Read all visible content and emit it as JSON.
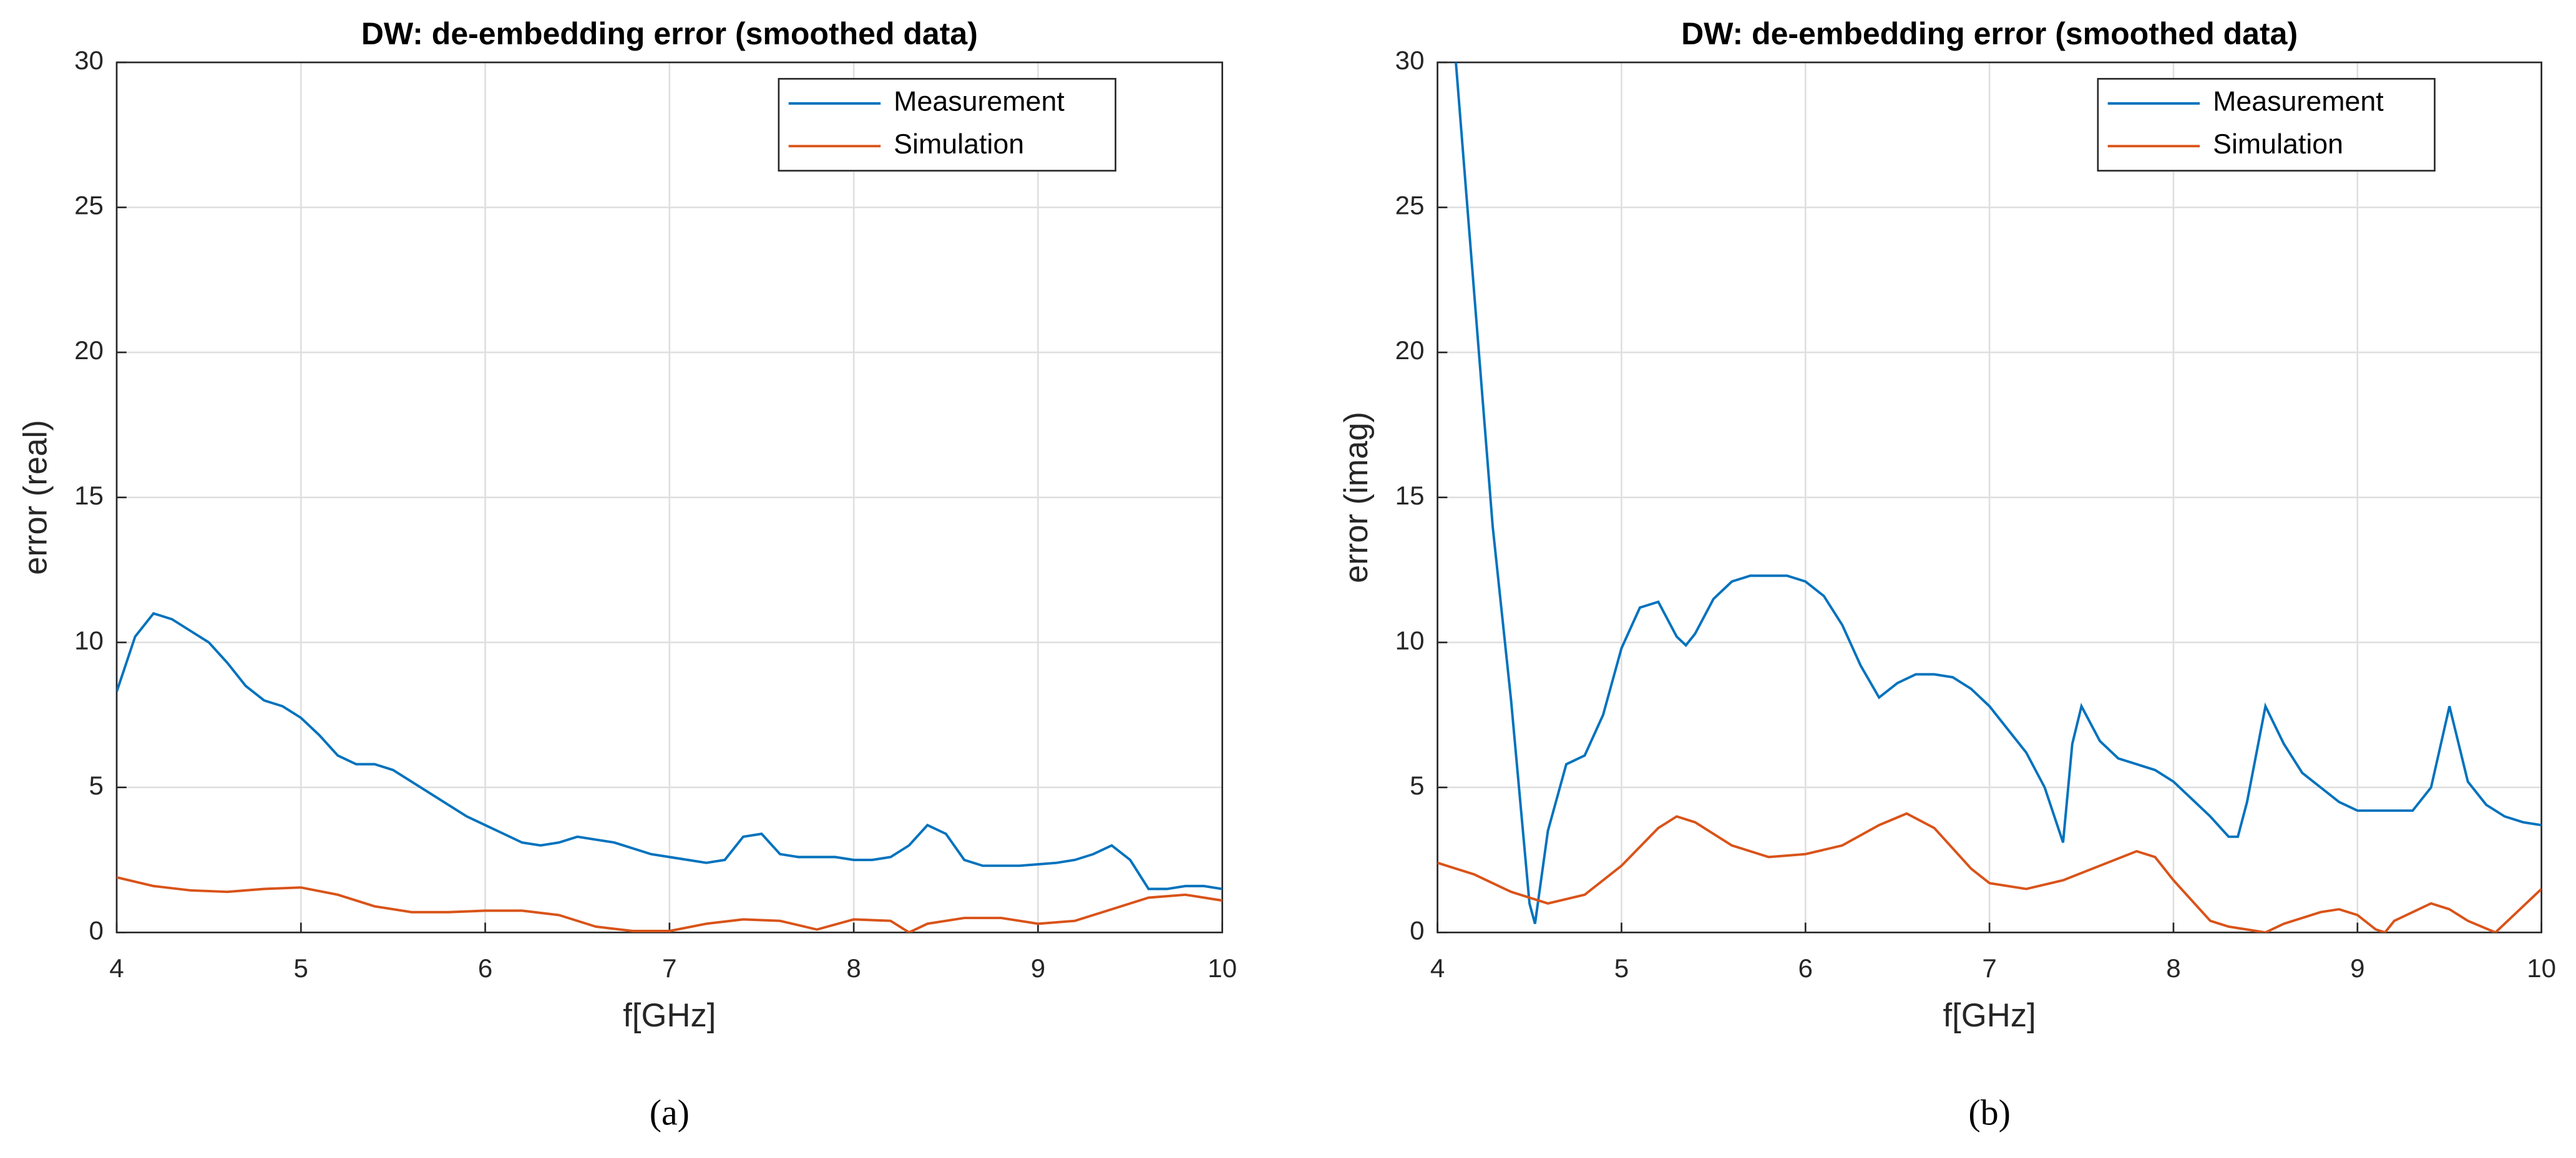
{
  "chart_data": [
    {
      "type": "line",
      "title": "DW: de-embedding error (smoothed data)",
      "xlabel": "f[GHz]",
      "ylabel": "error (real)",
      "caption": "(a)",
      "xlim": [
        4,
        10
      ],
      "xticks": [
        4,
        5,
        6,
        7,
        8,
        9,
        10
      ],
      "ylim": [
        0,
        30
      ],
      "yticks": [
        0,
        5,
        10,
        15,
        20,
        25,
        30
      ],
      "grid": true,
      "legend": "upper right",
      "series": [
        {
          "name": "Measurement",
          "color": "#0072bd",
          "x": [
            4.0,
            4.1,
            4.2,
            4.3,
            4.4,
            4.5,
            4.6,
            4.7,
            4.8,
            4.9,
            5.0,
            5.1,
            5.2,
            5.3,
            5.4,
            5.5,
            5.6,
            5.7,
            5.8,
            5.9,
            6.0,
            6.1,
            6.2,
            6.3,
            6.4,
            6.5,
            6.6,
            6.7,
            6.8,
            6.9,
            7.0,
            7.1,
            7.2,
            7.3,
            7.4,
            7.5,
            7.6,
            7.7,
            7.8,
            7.9,
            8.0,
            8.1,
            8.2,
            8.3,
            8.4,
            8.5,
            8.6,
            8.7,
            8.8,
            8.9,
            9.0,
            9.1,
            9.2,
            9.3,
            9.4,
            9.5,
            9.6,
            9.7,
            9.8,
            9.9,
            10.0
          ],
          "values": [
            8.3,
            10.2,
            11.0,
            10.8,
            10.4,
            10.0,
            9.3,
            8.5,
            8.0,
            7.8,
            7.4,
            6.8,
            6.1,
            5.8,
            5.8,
            5.6,
            5.2,
            4.8,
            4.4,
            4.0,
            3.7,
            3.4,
            3.1,
            3.0,
            3.1,
            3.3,
            3.2,
            3.1,
            2.9,
            2.7,
            2.6,
            2.5,
            2.4,
            2.5,
            3.3,
            3.4,
            2.7,
            2.6,
            2.6,
            2.6,
            2.5,
            2.5,
            2.6,
            3.0,
            3.7,
            3.4,
            2.5,
            2.3,
            2.3,
            2.3,
            2.35,
            2.4,
            2.5,
            2.7,
            3.0,
            2.5,
            1.5,
            1.5,
            1.6,
            1.6,
            1.5
          ]
        },
        {
          "name": "Simulation",
          "color": "#d95319",
          "x": [
            4.0,
            4.2,
            4.4,
            4.6,
            4.8,
            5.0,
            5.2,
            5.4,
            5.6,
            5.8,
            6.0,
            6.2,
            6.4,
            6.6,
            6.8,
            7.0,
            7.2,
            7.4,
            7.6,
            7.8,
            8.0,
            8.2,
            8.3,
            8.4,
            8.6,
            8.8,
            9.0,
            9.2,
            9.4,
            9.6,
            9.8,
            10.0
          ],
          "values": [
            1.9,
            1.6,
            1.45,
            1.4,
            1.5,
            1.55,
            1.3,
            0.9,
            0.7,
            0.7,
            0.75,
            0.75,
            0.6,
            0.2,
            0.05,
            0.05,
            0.3,
            0.45,
            0.4,
            0.1,
            0.45,
            0.4,
            0.0,
            0.3,
            0.5,
            0.5,
            0.3,
            0.4,
            0.8,
            1.2,
            1.3,
            1.1
          ]
        }
      ]
    },
    {
      "type": "line",
      "title": "DW: de-embedding error (smoothed data)",
      "xlabel": "f[GHz]",
      "ylabel": "error (imag)",
      "caption": "(b)",
      "xlim": [
        4,
        10
      ],
      "xticks": [
        4,
        5,
        6,
        7,
        8,
        9,
        10
      ],
      "ylim": [
        0,
        30
      ],
      "yticks": [
        0,
        5,
        10,
        15,
        20,
        25,
        30
      ],
      "grid": true,
      "legend": "upper right",
      "series": [
        {
          "name": "Measurement",
          "color": "#0072bd",
          "x": [
            4.1,
            4.2,
            4.3,
            4.4,
            4.5,
            4.53,
            4.6,
            4.7,
            4.8,
            4.9,
            5.0,
            5.1,
            5.2,
            5.3,
            5.35,
            5.4,
            5.5,
            5.6,
            5.7,
            5.8,
            5.9,
            6.0,
            6.1,
            6.2,
            6.3,
            6.4,
            6.5,
            6.6,
            6.7,
            6.8,
            6.9,
            7.0,
            7.1,
            7.2,
            7.3,
            7.4,
            7.45,
            7.5,
            7.6,
            7.7,
            7.8,
            7.9,
            8.0,
            8.1,
            8.2,
            8.3,
            8.35,
            8.4,
            8.5,
            8.6,
            8.7,
            8.8,
            8.9,
            9.0,
            9.1,
            9.2,
            9.3,
            9.4,
            9.5,
            9.6,
            9.7,
            9.8,
            9.9,
            10.0
          ],
          "values": [
            30,
            22,
            14,
            8,
            1,
            0.3,
            3.5,
            5.8,
            6.1,
            7.5,
            9.8,
            11.2,
            11.4,
            10.2,
            9.9,
            10.3,
            11.5,
            12.1,
            12.3,
            12.3,
            12.3,
            12.1,
            11.6,
            10.6,
            9.2,
            8.1,
            8.6,
            8.9,
            8.9,
            8.8,
            8.4,
            7.8,
            7.0,
            6.2,
            5.0,
            3.1,
            6.5,
            7.8,
            6.6,
            6.0,
            5.8,
            5.6,
            5.2,
            4.6,
            4.0,
            3.3,
            3.3,
            4.5,
            7.8,
            6.5,
            5.5,
            5.0,
            4.5,
            4.2,
            4.2,
            4.2,
            4.2,
            5.0,
            7.8,
            5.2,
            4.4,
            4.0,
            3.8,
            3.7
          ]
        },
        {
          "name": "Simulation",
          "color": "#d95319",
          "x": [
            4.0,
            4.2,
            4.4,
            4.6,
            4.8,
            5.0,
            5.2,
            5.3,
            5.4,
            5.6,
            5.8,
            6.0,
            6.2,
            6.4,
            6.55,
            6.7,
            6.9,
            7.0,
            7.2,
            7.4,
            7.6,
            7.8,
            7.9,
            8.0,
            8.2,
            8.3,
            8.4,
            8.5,
            8.6,
            8.8,
            8.9,
            9.0,
            9.1,
            9.15,
            9.2,
            9.4,
            9.5,
            9.6,
            9.75,
            9.9,
            10.0
          ],
          "values": [
            2.4,
            2.0,
            1.4,
            1.0,
            1.3,
            2.3,
            3.6,
            4.0,
            3.8,
            3.0,
            2.6,
            2.7,
            3.0,
            3.7,
            4.1,
            3.6,
            2.2,
            1.7,
            1.5,
            1.8,
            2.3,
            2.8,
            2.6,
            1.8,
            0.4,
            0.2,
            0.1,
            0.0,
            0.3,
            0.7,
            0.8,
            0.6,
            0.1,
            0.0,
            0.4,
            1.0,
            0.8,
            0.4,
            0.0,
            0.9,
            1.5
          ]
        }
      ]
    }
  ]
}
